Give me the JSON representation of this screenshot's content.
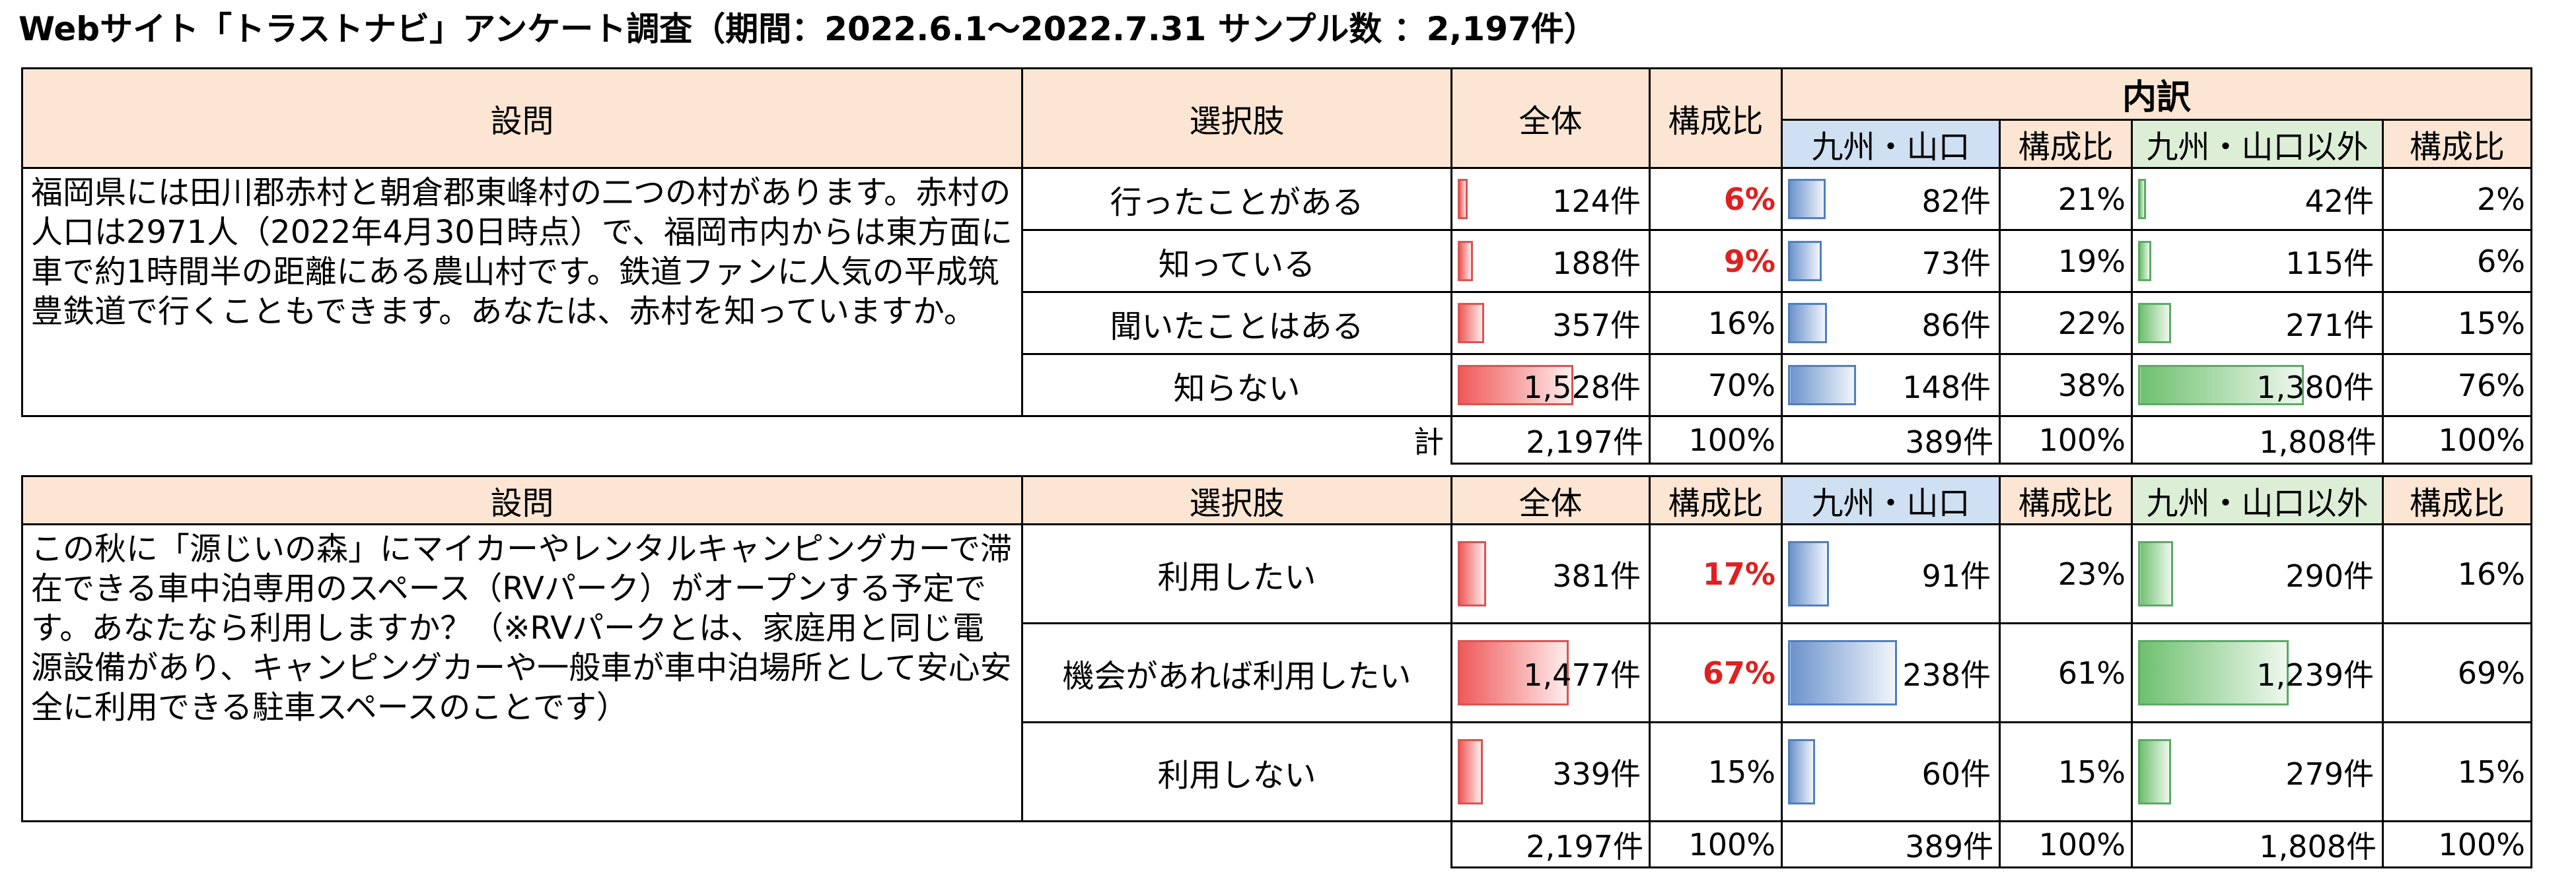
{
  "title": "Webサイト「トラストナビ」アンケート調査（期間：2022.6.1～2022.7.31 サンプル数 ：2,197件）",
  "colors": {
    "header_bg": "#fce6d3",
    "kyushu_header_bg": "#cfe0f3",
    "other_header_bg": "#dcefd6",
    "highlight": "#e02020"
  },
  "headers": {
    "question": "設問",
    "options": "選択肢",
    "total": "全体",
    "ratio": "構成比",
    "breakdown": "内訳",
    "kyushu": "九州・山口",
    "other": "九州・山口以外"
  },
  "total_label": "計",
  "tables": [
    {
      "question": "福岡県には田川郡赤村と朝倉郡東峰村の二つの村があります。赤村の人口は2971人（2022年4月30日時点）で、福岡市内からは東方面に車で約1時間半の距離にある農山村です。鉄道ファンに人気の平成筑豊鉄道で行くこともできます。あなたは、赤村を知っていますか。",
      "rows": [
        {
          "option": "行ったことがある",
          "total": "124件",
          "total_ratio": "6%",
          "highlight": true,
          "kyushu": "82件",
          "kyushu_ratio": "21%",
          "other": "42件",
          "other_ratio": "2%",
          "total_frac": 0.06,
          "kyushu_frac": 0.21,
          "other_frac": 0.02
        },
        {
          "option": "知っている",
          "total": "188件",
          "total_ratio": "9%",
          "highlight": true,
          "kyushu": "73件",
          "kyushu_ratio": "19%",
          "other": "115件",
          "other_ratio": "6%",
          "total_frac": 0.09,
          "kyushu_frac": 0.19,
          "other_frac": 0.06
        },
        {
          "option": "聞いたことはある",
          "total": "357件",
          "total_ratio": "16%",
          "highlight": false,
          "kyushu": "86件",
          "kyushu_ratio": "22%",
          "other": "271件",
          "other_ratio": "15%",
          "total_frac": 0.16,
          "kyushu_frac": 0.22,
          "other_frac": 0.15
        },
        {
          "option": "知らない",
          "total": "1,528件",
          "total_ratio": "70%",
          "highlight": false,
          "kyushu": "148件",
          "kyushu_ratio": "38%",
          "other": "1,380件",
          "other_ratio": "76%",
          "total_frac": 0.7,
          "kyushu_frac": 0.38,
          "other_frac": 0.76
        }
      ],
      "totals": {
        "total": "2,197件",
        "total_ratio": "100%",
        "kyushu": "389件",
        "kyushu_ratio": "100%",
        "other": "1,808件",
        "other_ratio": "100%"
      }
    },
    {
      "question": "この秋に「源じいの森」にマイカーやレンタルキャンピングカーで滞在できる車中泊専用のスペース（RVパーク）がオープンする予定です。あなたなら利用しますか？（※RVパークとは、家庭用と同じ電源設備があり、キャンピングカーや一般車が車中泊場所として安心安全に利用できる駐車スペースのことです）",
      "rows": [
        {
          "option": "利用したい",
          "total": "381件",
          "total_ratio": "17%",
          "highlight": true,
          "kyushu": "91件",
          "kyushu_ratio": "23%",
          "other": "290件",
          "other_ratio": "16%",
          "total_frac": 0.17,
          "kyushu_frac": 0.23,
          "other_frac": 0.16
        },
        {
          "option": "機会があれば利用したい",
          "total": "1,477件",
          "total_ratio": "67%",
          "highlight": true,
          "kyushu": "238件",
          "kyushu_ratio": "61%",
          "other": "1,239件",
          "other_ratio": "69%",
          "total_frac": 0.67,
          "kyushu_frac": 0.61,
          "other_frac": 0.69
        },
        {
          "option": "利用しない",
          "total": "339件",
          "total_ratio": "15%",
          "highlight": false,
          "kyushu": "60件",
          "kyushu_ratio": "15%",
          "other": "279件",
          "other_ratio": "15%",
          "total_frac": 0.15,
          "kyushu_frac": 0.15,
          "other_frac": 0.15
        }
      ],
      "totals": {
        "total": "2,197件",
        "total_ratio": "100%",
        "kyushu": "389件",
        "kyushu_ratio": "100%",
        "other": "1,808件",
        "other_ratio": "100%"
      }
    }
  ]
}
